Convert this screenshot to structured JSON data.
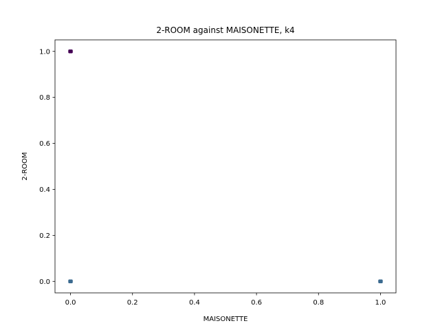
{
  "chart_data": {
    "type": "scatter",
    "title": "2-ROOM against MAISONETTE, k4",
    "xlabel": "MAISONETTE",
    "ylabel": "2-ROOM",
    "xlim": [
      -0.05,
      1.05
    ],
    "ylim": [
      -0.05,
      1.05
    ],
    "xticks": [
      "0.0",
      "0.2",
      "0.4",
      "0.6",
      "0.8",
      "1.0"
    ],
    "yticks": [
      "0.0",
      "0.2",
      "0.4",
      "0.6",
      "0.8",
      "1.0"
    ],
    "grid": false,
    "points": [
      {
        "x": 0,
        "y": 1,
        "color": "#440154"
      },
      {
        "x": 0,
        "y": 0,
        "color": "#3b6a8f"
      },
      {
        "x": 1,
        "y": 0,
        "color": "#3b6a8f"
      }
    ]
  },
  "colors": {
    "axis": "#000000",
    "background": "#ffffff"
  }
}
